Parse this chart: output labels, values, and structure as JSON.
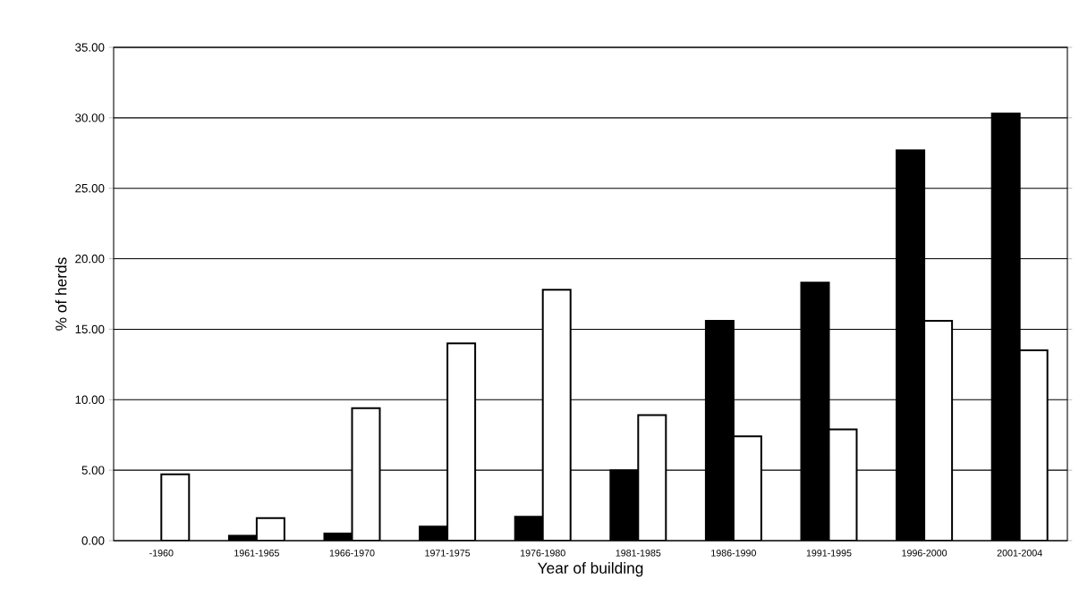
{
  "chart_data": {
    "type": "bar",
    "xlabel": "Year of building",
    "ylabel": "% of herds",
    "categories": [
      "-1960",
      "1961-1965",
      "1966-1970",
      "1971-1975",
      "1976-1980",
      "1981-1985",
      "1986-1990",
      "1991-1995",
      "1996-2000",
      "2001-2004"
    ],
    "series": [
      {
        "color": "#000000",
        "values": [
          null,
          0.35,
          0.5,
          1.0,
          1.7,
          5.0,
          15.6,
          18.3,
          27.7,
          30.3
        ]
      },
      {
        "color": "#ffffff",
        "values": [
          4.7,
          1.6,
          9.4,
          14.0,
          17.8,
          8.9,
          7.4,
          7.9,
          15.6,
          13.5
        ]
      }
    ],
    "ylim": [
      0,
      35
    ],
    "yticks": [
      {
        "value": 0,
        "label": "0.00"
      },
      {
        "value": 5,
        "label": "5.00"
      },
      {
        "value": 10,
        "label": "10.00"
      },
      {
        "value": 15,
        "label": "15.00"
      },
      {
        "value": 20,
        "label": "20.00"
      },
      {
        "value": 25,
        "label": "25.00"
      },
      {
        "value": 30,
        "label": "30.00"
      },
      {
        "value": 35,
        "label": "35.00"
      }
    ],
    "grid": "y"
  }
}
